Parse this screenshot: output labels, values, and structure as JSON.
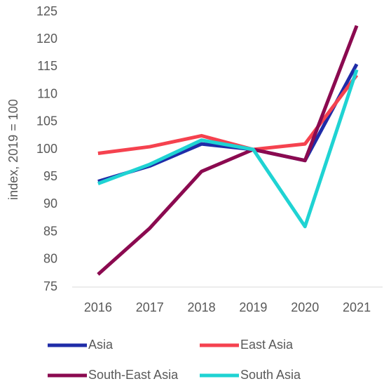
{
  "chart_data": {
    "type": "line",
    "y_label": "index, 2019 = 100",
    "categories": [
      "2016",
      "2017",
      "2018",
      "2019",
      "2020",
      "2021"
    ],
    "series": [
      {
        "name": "Asia",
        "color": "#1f2ca8",
        "values": [
          94.2,
          97,
          101,
          100,
          98,
          115.5
        ]
      },
      {
        "name": "East Asia",
        "color": "#f5424f",
        "values": [
          99.3,
          100.5,
          102.5,
          100,
          101,
          113.5
        ]
      },
      {
        "name": "South-East Asia",
        "color": "#8b0a50",
        "values": [
          77.3,
          85.7,
          96,
          100,
          98,
          122.5
        ]
      },
      {
        "name": "South Asia",
        "color": "#1fd3d3",
        "values": [
          93.8,
          97.3,
          101.7,
          100,
          86,
          114.5
        ]
      }
    ],
    "ylim": [
      75,
      125
    ],
    "yticks": [
      75,
      80,
      85,
      90,
      95,
      100,
      105,
      110,
      115,
      120,
      125
    ],
    "grid": false,
    "legend": "bottom"
  }
}
